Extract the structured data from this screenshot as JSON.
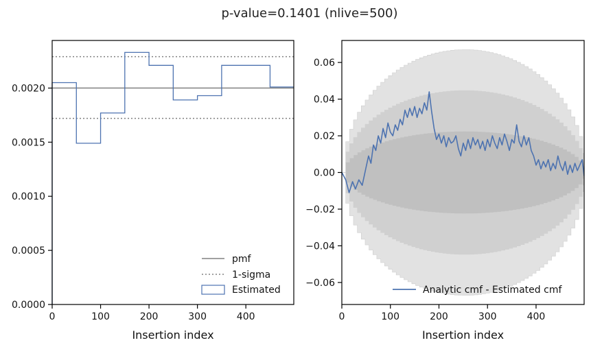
{
  "figure": {
    "title": "p-value=0.1401 (nlive=500)"
  },
  "chart_data": [
    {
      "type": "step",
      "xlabel": "Insertion index",
      "ylabel": "",
      "xlim": [
        0,
        499
      ],
      "ylim": [
        0,
        0.00244
      ],
      "xticks": [
        0,
        100,
        200,
        300,
        400
      ],
      "xtick_labels": [
        "0",
        "100",
        "200",
        "300",
        "400"
      ],
      "yticks": [
        0,
        0.0005,
        0.001,
        0.0015,
        0.002
      ],
      "ytick_labels": [
        "0.0000",
        "0.0005",
        "0.0010",
        "0.0015",
        "0.0020"
      ],
      "pmf": 0.002,
      "sigma_lower": 0.00172,
      "sigma_upper": 0.00229,
      "bin_edges": [
        0,
        50,
        100,
        150,
        200,
        250,
        300,
        350,
        400,
        450,
        499
      ],
      "estimated": [
        0.00205,
        0.00149,
        0.00177,
        0.00233,
        0.00221,
        0.00189,
        0.00193,
        0.00221,
        0.00221,
        0.00201
      ],
      "legend": {
        "position": "lower-right",
        "entries": [
          "pmf",
          "1-sigma",
          "Estimated"
        ]
      },
      "colors": {
        "pmf": "#808080",
        "sigma": "#808080",
        "estimated": "#4c72b0"
      }
    },
    {
      "type": "line",
      "xlabel": "Insertion index",
      "ylabel": "",
      "xlim": [
        0,
        499
      ],
      "ylim": [
        -0.072,
        0.072
      ],
      "xticks": [
        0,
        100,
        200,
        300,
        400
      ],
      "xtick_labels": [
        "0",
        "100",
        "200",
        "300",
        "400"
      ],
      "yticks": [
        -0.06,
        -0.04,
        -0.02,
        0.0,
        0.02,
        0.04,
        0.06
      ],
      "ytick_labels": [
        "−0.06",
        "−0.04",
        "−0.02",
        "0.00",
        "0.02",
        "0.04",
        "0.06"
      ],
      "sigma_band_amplitudes": [
        0.0225,
        0.0447,
        0.067
      ],
      "series_name": "Analytic cmf - Estimated cmf",
      "series_x": [
        0,
        8,
        15,
        22,
        28,
        35,
        42,
        50,
        55,
        60,
        65,
        70,
        75,
        80,
        85,
        90,
        95,
        100,
        105,
        110,
        115,
        120,
        125,
        130,
        135,
        140,
        145,
        150,
        155,
        160,
        165,
        170,
        175,
        180,
        185,
        190,
        195,
        200,
        205,
        210,
        215,
        220,
        225,
        230,
        235,
        240,
        245,
        250,
        255,
        260,
        265,
        270,
        275,
        280,
        285,
        290,
        295,
        300,
        305,
        310,
        315,
        320,
        325,
        330,
        335,
        340,
        345,
        350,
        355,
        360,
        365,
        370,
        375,
        380,
        385,
        390,
        395,
        400,
        405,
        410,
        415,
        420,
        425,
        430,
        435,
        440,
        445,
        450,
        455,
        460,
        465,
        470,
        475,
        480,
        485,
        490,
        495,
        499
      ],
      "series_y": [
        0.0,
        -0.004,
        -0.011,
        -0.005,
        -0.009,
        -0.004,
        -0.007,
        0.003,
        0.009,
        0.005,
        0.015,
        0.012,
        0.02,
        0.016,
        0.024,
        0.019,
        0.027,
        0.022,
        0.02,
        0.026,
        0.023,
        0.029,
        0.026,
        0.034,
        0.03,
        0.035,
        0.031,
        0.036,
        0.03,
        0.035,
        0.032,
        0.038,
        0.034,
        0.044,
        0.033,
        0.024,
        0.018,
        0.021,
        0.016,
        0.02,
        0.014,
        0.019,
        0.016,
        0.017,
        0.02,
        0.013,
        0.009,
        0.016,
        0.012,
        0.018,
        0.013,
        0.019,
        0.015,
        0.018,
        0.013,
        0.017,
        0.012,
        0.018,
        0.014,
        0.02,
        0.016,
        0.013,
        0.019,
        0.015,
        0.021,
        0.017,
        0.012,
        0.018,
        0.016,
        0.026,
        0.017,
        0.014,
        0.02,
        0.015,
        0.019,
        0.012,
        0.009,
        0.004,
        0.007,
        0.002,
        0.006,
        0.003,
        0.007,
        0.001,
        0.005,
        0.002,
        0.009,
        0.004,
        0.001,
        0.006,
        -0.001,
        0.004,
        0.0,
        0.005,
        0.001,
        0.004,
        0.007,
        -0.002
      ],
      "legend": {
        "position": "lower-right",
        "entries": [
          "Analytic cmf - Estimated cmf"
        ]
      },
      "colors": {
        "line": "#4c72b0",
        "band_outer": "#e2e2e2",
        "band_mid": "#d0d0d0",
        "band_inner": "#c0c0c0"
      }
    }
  ]
}
